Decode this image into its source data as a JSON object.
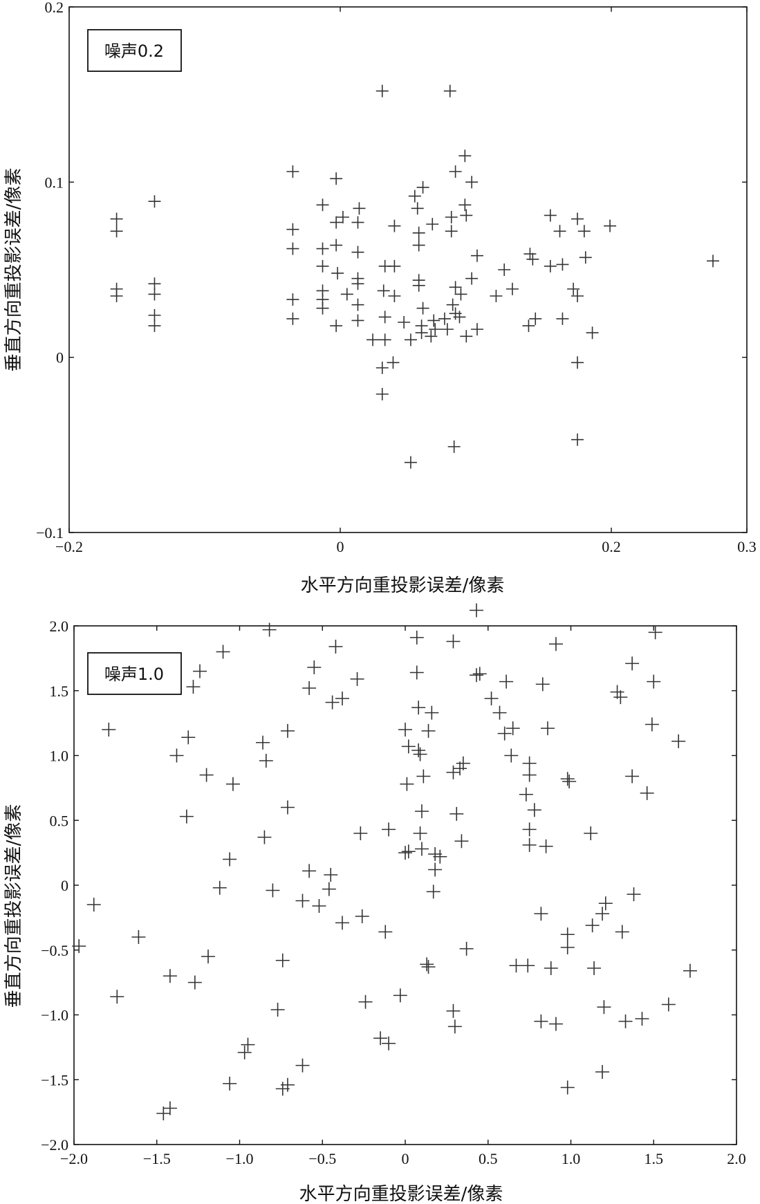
{
  "chart_data": [
    {
      "type": "scatter",
      "legend": "噪声0.2",
      "legend_position": "top-left",
      "xlabel": "水平方向重投影误差/像素",
      "ylabel": "垂直方向重投影误差/像素",
      "xlim": [
        -0.2,
        0.3
      ],
      "ylim": [
        -0.1,
        0.2
      ],
      "xticks": [
        -0.2,
        0,
        0.2,
        0.3
      ],
      "xtick_labels": [
        "−0.2",
        "0",
        "0.2",
        "0.3"
      ],
      "yticks": [
        -0.1,
        0,
        0.1,
        0.2
      ],
      "ytick_labels": [
        "−0.1",
        "0",
        "0.1",
        "0.2"
      ],
      "grid": false,
      "marker": "+",
      "points": [
        [
          0.031,
          0.152
        ],
        [
          0.081,
          0.152
        ],
        [
          -0.035,
          0.106
        ],
        [
          0.085,
          0.106
        ],
        [
          0.092,
          0.115
        ],
        [
          -0.003,
          0.102
        ],
        [
          0.097,
          0.1
        ],
        [
          0.055,
          0.092
        ],
        [
          0.061,
          0.097
        ],
        [
          -0.013,
          0.087
        ],
        [
          0.014,
          0.085
        ],
        [
          0.057,
          0.085
        ],
        [
          0.092,
          0.087
        ],
        [
          -0.137,
          0.089
        ],
        [
          -0.165,
          0.079
        ],
        [
          -0.165,
          0.072
        ],
        [
          0.002,
          0.08
        ],
        [
          -0.003,
          0.077
        ],
        [
          0.013,
          0.077
        ],
        [
          0.04,
          0.075
        ],
        [
          0.082,
          0.08
        ],
        [
          0.093,
          0.081
        ],
        [
          -0.035,
          0.073
        ],
        [
          0.068,
          0.076
        ],
        [
          0.058,
          0.071
        ],
        [
          0.082,
          0.072
        ],
        [
          0.155,
          0.081
        ],
        [
          0.175,
          0.079
        ],
        [
          0.162,
          0.072
        ],
        [
          0.18,
          0.072
        ],
        [
          0.199,
          0.075
        ],
        [
          -0.035,
          0.062
        ],
        [
          -0.013,
          0.062
        ],
        [
          -0.003,
          0.064
        ],
        [
          0.013,
          0.06
        ],
        [
          0.058,
          0.064
        ],
        [
          0.101,
          0.058
        ],
        [
          0.14,
          0.059
        ],
        [
          0.142,
          0.056
        ],
        [
          0.181,
          0.057
        ],
        [
          0.275,
          0.055
        ],
        [
          -0.013,
          0.052
        ],
        [
          0.033,
          0.052
        ],
        [
          0.04,
          0.052
        ],
        [
          0.121,
          0.05
        ],
        [
          0.155,
          0.052
        ],
        [
          0.164,
          0.053
        ],
        [
          -0.002,
          0.048
        ],
        [
          0.013,
          0.045
        ],
        [
          0.058,
          0.044
        ],
        [
          0.058,
          0.041
        ],
        [
          0.097,
          0.045
        ],
        [
          0.013,
          0.042
        ],
        [
          -0.165,
          0.039
        ],
        [
          -0.165,
          0.035
        ],
        [
          -0.137,
          0.042
        ],
        [
          -0.137,
          0.036
        ],
        [
          -0.013,
          0.038
        ],
        [
          -0.013,
          0.033
        ],
        [
          0.005,
          0.036
        ],
        [
          0.032,
          0.038
        ],
        [
          0.04,
          0.035
        ],
        [
          0.085,
          0.04
        ],
        [
          0.089,
          0.036
        ],
        [
          0.115,
          0.035
        ],
        [
          0.127,
          0.039
        ],
        [
          0.172,
          0.039
        ],
        [
          0.175,
          0.035
        ],
        [
          -0.035,
          0.033
        ],
        [
          -0.013,
          0.028
        ],
        [
          0.013,
          0.03
        ],
        [
          0.061,
          0.028
        ],
        [
          0.083,
          0.03
        ],
        [
          0.085,
          0.025
        ],
        [
          -0.137,
          0.024
        ],
        [
          -0.137,
          0.018
        ],
        [
          -0.035,
          0.022
        ],
        [
          -0.003,
          0.018
        ],
        [
          0.013,
          0.021
        ],
        [
          0.033,
          0.023
        ],
        [
          0.047,
          0.02
        ],
        [
          0.06,
          0.018
        ],
        [
          0.069,
          0.021
        ],
        [
          0.077,
          0.022
        ],
        [
          0.088,
          0.023
        ],
        [
          0.101,
          0.016
        ],
        [
          0.139,
          0.018
        ],
        [
          0.144,
          0.022
        ],
        [
          0.164,
          0.022
        ],
        [
          0.186,
          0.014
        ],
        [
          0.024,
          0.01
        ],
        [
          0.033,
          0.01
        ],
        [
          0.052,
          0.01
        ],
        [
          0.06,
          0.014
        ],
        [
          0.067,
          0.012
        ],
        [
          0.07,
          0.016
        ],
        [
          0.079,
          0.016
        ],
        [
          0.093,
          0.012
        ],
        [
          0.039,
          -0.003
        ],
        [
          0.031,
          -0.006
        ],
        [
          0.175,
          -0.003
        ],
        [
          0.031,
          -0.021
        ],
        [
          0.084,
          -0.051
        ],
        [
          0.175,
          -0.047
        ],
        [
          0.052,
          -0.06
        ]
      ]
    },
    {
      "type": "scatter",
      "legend": "噪声1.0",
      "legend_position": "top-left",
      "xlabel": "水平方向重投影误差/像素",
      "ylabel": "垂直方向重投影误差/像素",
      "xlim": [
        -2.0,
        2.0
      ],
      "ylim": [
        -2.0,
        2.0
      ],
      "xticks": [
        -2.0,
        -1.5,
        -1.0,
        -0.5,
        0,
        0.5,
        1.0,
        1.5,
        2.0
      ],
      "xtick_labels": [
        "−2.0",
        "−1.5",
        "−1.0",
        "−0.5",
        "0",
        "0.5",
        "1.0",
        "1.5",
        "2.0"
      ],
      "yticks": [
        -2.0,
        -1.5,
        -1.0,
        -0.5,
        0,
        0.5,
        1.0,
        1.5,
        2.0
      ],
      "ytick_labels": [
        "−2.0",
        "−1.5",
        "−1.0",
        "−0.5",
        "0",
        "0.5",
        "1.0",
        "1.5",
        "2.0"
      ],
      "grid": false,
      "marker": "+",
      "points": [
        [
          0.43,
          2.12
        ],
        [
          1.51,
          1.95
        ],
        [
          0.07,
          1.91
        ],
        [
          0.29,
          1.88
        ],
        [
          0.91,
          1.86
        ],
        [
          -1.1,
          1.8
        ],
        [
          -0.82,
          1.97
        ],
        [
          -0.42,
          1.84
        ],
        [
          1.37,
          1.71
        ],
        [
          -1.24,
          1.65
        ],
        [
          0.07,
          1.64
        ],
        [
          0.45,
          1.63
        ],
        [
          0.43,
          1.62
        ],
        [
          -0.55,
          1.68
        ],
        [
          -0.29,
          1.59
        ],
        [
          0.61,
          1.57
        ],
        [
          0.83,
          1.55
        ],
        [
          1.5,
          1.57
        ],
        [
          -1.28,
          1.53
        ],
        [
          -0.58,
          1.52
        ],
        [
          1.28,
          1.49
        ],
        [
          1.3,
          1.45
        ],
        [
          -0.38,
          1.44
        ],
        [
          -0.44,
          1.41
        ],
        [
          0.52,
          1.44
        ],
        [
          0.57,
          1.33
        ],
        [
          0.08,
          1.37
        ],
        [
          0.16,
          1.33
        ],
        [
          1.49,
          1.24
        ],
        [
          0.65,
          1.21
        ],
        [
          0.86,
          1.21
        ],
        [
          0.0,
          1.2
        ],
        [
          0.14,
          1.19
        ],
        [
          0.6,
          1.17
        ],
        [
          -1.79,
          1.2
        ],
        [
          -0.71,
          1.19
        ],
        [
          -1.31,
          1.14
        ],
        [
          1.65,
          1.11
        ],
        [
          -0.86,
          1.1
        ],
        [
          0.02,
          1.07
        ],
        [
          0.08,
          1.04
        ],
        [
          0.09,
          1.01
        ],
        [
          0.64,
          1.0
        ],
        [
          -1.38,
          1.0
        ],
        [
          -0.84,
          0.96
        ],
        [
          0.35,
          0.94
        ],
        [
          0.33,
          0.9
        ],
        [
          0.75,
          0.94
        ],
        [
          0.75,
          0.85
        ],
        [
          1.37,
          0.84
        ],
        [
          -1.2,
          0.85
        ],
        [
          0.11,
          0.84
        ],
        [
          0.29,
          0.87
        ],
        [
          0.98,
          0.82
        ],
        [
          0.99,
          0.8
        ],
        [
          0.01,
          0.78
        ],
        [
          -1.04,
          0.78
        ],
        [
          0.73,
          0.7
        ],
        [
          1.46,
          0.71
        ],
        [
          -0.71,
          0.6
        ],
        [
          0.1,
          0.57
        ],
        [
          0.31,
          0.55
        ],
        [
          0.78,
          0.58
        ],
        [
          -1.32,
          0.53
        ],
        [
          -0.27,
          0.4
        ],
        [
          -0.1,
          0.43
        ],
        [
          0.09,
          0.4
        ],
        [
          0.34,
          0.34
        ],
        [
          0.75,
          0.43
        ],
        [
          1.12,
          0.4
        ],
        [
          -0.85,
          0.37
        ],
        [
          0.1,
          0.28
        ],
        [
          0.02,
          0.26
        ],
        [
          0.75,
          0.31
        ],
        [
          0.85,
          0.3
        ],
        [
          0.0,
          0.25
        ],
        [
          0.18,
          0.24
        ],
        [
          0.21,
          0.22
        ],
        [
          -1.06,
          0.2
        ],
        [
          0.18,
          0.12
        ],
        [
          -0.58,
          0.11
        ],
        [
          -0.45,
          0.08
        ],
        [
          -1.12,
          -0.02
        ],
        [
          -0.8,
          -0.04
        ],
        [
          -0.46,
          -0.03
        ],
        [
          0.17,
          -0.05
        ],
        [
          -0.62,
          -0.12
        ],
        [
          -0.52,
          -0.16
        ],
        [
          -1.88,
          -0.15
        ],
        [
          1.38,
          -0.07
        ],
        [
          -0.26,
          -0.24
        ],
        [
          -0.38,
          -0.29
        ],
        [
          1.21,
          -0.14
        ],
        [
          0.82,
          -0.22
        ],
        [
          1.19,
          -0.22
        ],
        [
          1.13,
          -0.31
        ],
        [
          -0.12,
          -0.36
        ],
        [
          1.31,
          -0.36
        ],
        [
          -1.61,
          -0.4
        ],
        [
          0.98,
          -0.38
        ],
        [
          -1.97,
          -0.47
        ],
        [
          0.98,
          -0.48
        ],
        [
          0.37,
          -0.49
        ],
        [
          -1.19,
          -0.55
        ],
        [
          -0.74,
          -0.58
        ],
        [
          0.13,
          -0.61
        ],
        [
          0.14,
          -0.63
        ],
        [
          0.67,
          -0.62
        ],
        [
          0.74,
          -0.62
        ],
        [
          0.88,
          -0.64
        ],
        [
          1.14,
          -0.64
        ],
        [
          1.72,
          -0.66
        ],
        [
          -1.42,
          -0.7
        ],
        [
          -1.27,
          -0.75
        ],
        [
          -1.74,
          -0.86
        ],
        [
          -0.03,
          -0.85
        ],
        [
          -0.24,
          -0.9
        ],
        [
          1.59,
          -0.92
        ],
        [
          1.2,
          -0.94
        ],
        [
          -0.77,
          -0.96
        ],
        [
          0.29,
          -0.97
        ],
        [
          0.82,
          -1.05
        ],
        [
          0.91,
          -1.07
        ],
        [
          1.33,
          -1.05
        ],
        [
          1.43,
          -1.03
        ],
        [
          0.3,
          -1.09
        ],
        [
          -0.95,
          -1.23
        ],
        [
          -0.15,
          -1.18
        ],
        [
          -0.1,
          -1.22
        ],
        [
          -0.97,
          -1.29
        ],
        [
          -0.62,
          -1.39
        ],
        [
          1.19,
          -1.44
        ],
        [
          -1.06,
          -1.53
        ],
        [
          -0.71,
          -1.54
        ],
        [
          -0.74,
          -1.57
        ],
        [
          0.98,
          -1.56
        ],
        [
          -1.42,
          -1.72
        ],
        [
          -1.46,
          -1.76
        ]
      ]
    }
  ]
}
